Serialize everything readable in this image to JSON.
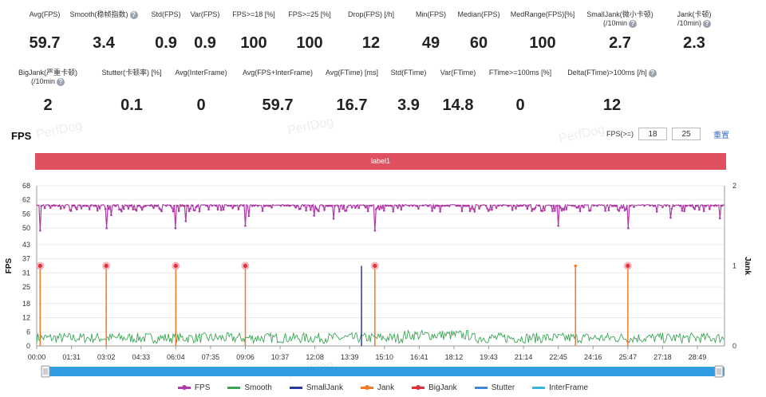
{
  "stats_row1": [
    {
      "label": "Avg(FPS)",
      "value": "59.7",
      "help": false
    },
    {
      "label": "Smooth(稳帧指数)",
      "value": "3.4",
      "help": true
    },
    {
      "label": "Std(FPS)",
      "value": "0.9",
      "help": false
    },
    {
      "label": "Var(FPS)",
      "value": "0.9",
      "help": false
    },
    {
      "label": "FPS>=18 [%]",
      "value": "100",
      "help": false
    },
    {
      "label": "FPS>=25 [%]",
      "value": "100",
      "help": false
    },
    {
      "label": "Drop(FPS) [/h]",
      "value": "12",
      "help": false
    },
    {
      "label": "Min(FPS)",
      "value": "49",
      "help": false
    },
    {
      "label": "Median(FPS)",
      "value": "60",
      "help": false
    },
    {
      "label": "MedRange(FPS)[%]",
      "value": "100",
      "help": false
    },
    {
      "label": "SmallJank(微小卡顿)",
      "label2": "(/10min",
      "value": "2.7",
      "help": true
    },
    {
      "label": "Jank(卡顿)",
      "label2": "/10min)",
      "value": "2.3",
      "help": true
    }
  ],
  "stats_row2": [
    {
      "label": "BigJank(严重卡顿)",
      "label2": "(/10min",
      "value": "2",
      "help": true
    },
    {
      "label": "Stutter(卡顿率) [%]",
      "value": "0.1",
      "help": false
    },
    {
      "label": "Avg(InterFrame)",
      "value": "0",
      "help": false
    },
    {
      "label": "Avg(FPS+InterFrame)",
      "value": "59.7",
      "help": false
    },
    {
      "label": "Avg(FTime) [ms]",
      "value": "16.7",
      "help": false
    },
    {
      "label": "Std(FTime)",
      "value": "3.9",
      "help": false
    },
    {
      "label": "Var(FTime)",
      "value": "14.8",
      "help": false
    },
    {
      "label": "FTime>=100ms [%]",
      "value": "0",
      "help": false
    },
    {
      "label": "Delta(FTime)>100ms [/h]",
      "value": "12",
      "help": true
    }
  ],
  "section_title": "FPS",
  "filter": {
    "label": "FPS(>=)",
    "value1": "18",
    "value2": "25",
    "reset": "重置"
  },
  "label_bar": "label1",
  "watermark": "PerfDog",
  "colors": {
    "fps": "#b03aa8",
    "smooth": "#3aa655",
    "smalljank": "#2a3a9c",
    "jank": "#f07a2a",
    "bigjank": "#e0303a",
    "stutter": "#3a8ad8",
    "interframe": "#38b6d8",
    "label": "#e05060"
  },
  "chart_data": {
    "type": "line",
    "ylabel": "FPS",
    "y2label": "Jank",
    "ylim": [
      0,
      68
    ],
    "y2lim": [
      0,
      2
    ],
    "yticks": [
      0,
      6,
      12,
      18,
      25,
      31,
      37,
      43,
      50,
      56,
      62,
      68
    ],
    "y2ticks": [
      0,
      1,
      2
    ],
    "xlim_seconds": [
      0,
      1800
    ],
    "xticks": [
      "00:00",
      "01:31",
      "03:02",
      "04:33",
      "06:04",
      "07:35",
      "09:06",
      "10:37",
      "12:08",
      "13:39",
      "15:10",
      "16:41",
      "18:12",
      "19:43",
      "21:14",
      "22:45",
      "24:16",
      "25:47",
      "27:18",
      "28:49"
    ],
    "series": [
      {
        "name": "FPS",
        "summary": {
          "typical": 60,
          "min": 49,
          "dips": [
            {
              "t": "00:09",
              "value": 49
            },
            {
              "t": "03:02",
              "value": 50
            },
            {
              "t": "06:04",
              "value": 50
            },
            {
              "t": "06:30",
              "value": 53
            },
            {
              "t": "09:06",
              "value": 51
            },
            {
              "t": "14:45",
              "value": 49
            },
            {
              "t": "22:45",
              "value": 51
            },
            {
              "t": "25:47",
              "value": 50
            }
          ]
        }
      },
      {
        "name": "Smooth",
        "summary": {
          "typical": 3.4,
          "range": [
            0,
            7
          ]
        }
      },
      {
        "name": "SmallJank",
        "events": [
          "14:10"
        ]
      },
      {
        "name": "Jank",
        "events": [
          "00:09",
          "03:02",
          "06:04",
          "09:06",
          "14:45",
          "23:30",
          "25:47"
        ]
      },
      {
        "name": "BigJank",
        "events": [
          "00:09",
          "03:02",
          "06:04",
          "09:06",
          "14:45",
          "25:47"
        ]
      },
      {
        "name": "Stutter",
        "events": []
      },
      {
        "name": "InterFrame",
        "events": []
      }
    ],
    "legend": [
      "FPS",
      "Smooth",
      "SmallJank",
      "Jank",
      "BigJank",
      "Stutter",
      "InterFrame"
    ],
    "legend_position": "bottom",
    "grid": true
  }
}
